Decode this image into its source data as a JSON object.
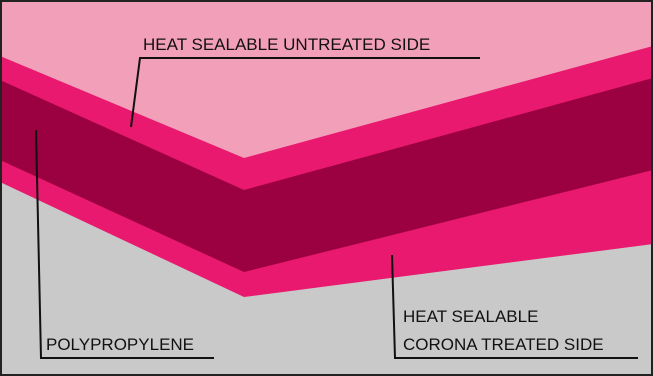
{
  "labels": {
    "top": "HEAT SEALABLE UNTREATED SIDE",
    "middle": "POLYPROPYLENE",
    "bottom_line1": "HEAT SEALABLE",
    "bottom_line2": "CORONA TREATED SIDE"
  },
  "colors": {
    "background_top": "#f2a0b9",
    "background_bottom": "#c9c9c9",
    "sealant_layer": "#e8196e",
    "core_layer": "#9b0041",
    "leader_line": "#111111",
    "frame": "#222222"
  }
}
